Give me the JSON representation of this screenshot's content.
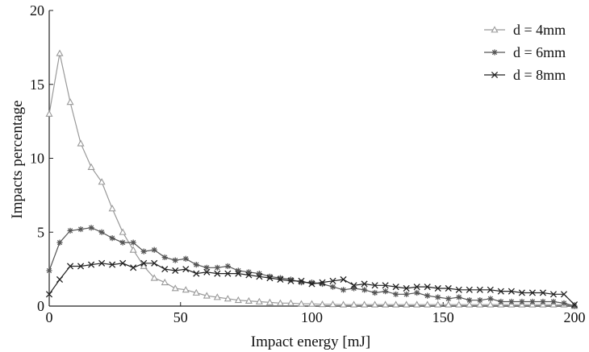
{
  "chart_data": {
    "type": "line",
    "xlabel": "Impact energy [mJ]",
    "ylabel": "Impacts percentage",
    "xlim": [
      0,
      200
    ],
    "ylim": [
      0,
      20
    ],
    "x_ticks": [
      0,
      50,
      100,
      150,
      200
    ],
    "y_ticks": [
      0,
      5,
      10,
      15,
      20
    ],
    "grid": false,
    "legend_position": "top-right",
    "x": [
      0,
      4,
      8,
      12,
      16,
      20,
      24,
      28,
      32,
      36,
      40,
      44,
      48,
      52,
      56,
      60,
      64,
      68,
      72,
      76,
      80,
      84,
      88,
      92,
      96,
      100,
      104,
      108,
      112,
      116,
      120,
      124,
      128,
      132,
      136,
      140,
      144,
      148,
      152,
      156,
      160,
      164,
      168,
      172,
      176,
      180,
      184,
      188,
      192,
      196,
      200
    ],
    "series": [
      {
        "name": "d = 4mm",
        "marker": "triangle",
        "color": "#999999",
        "values": [
          13.0,
          17.1,
          13.8,
          11.0,
          9.4,
          8.4,
          6.6,
          5.0,
          3.8,
          2.7,
          1.9,
          1.6,
          1.2,
          1.1,
          0.9,
          0.7,
          0.6,
          0.5,
          0.4,
          0.35,
          0.3,
          0.25,
          0.2,
          0.2,
          0.15,
          0.15,
          0.12,
          0.12,
          0.1,
          0.1,
          0.1,
          0.1,
          0.1,
          0.1,
          0.1,
          0.1,
          0.1,
          0.1,
          0.1,
          0.1,
          0.1,
          0.1,
          0.1,
          0.1,
          0.1,
          0.1,
          0.1,
          0.1,
          0.1,
          0.1,
          0.0
        ]
      },
      {
        "name": "d = 6mm",
        "marker": "asterisk",
        "color": "#555555",
        "values": [
          2.4,
          4.3,
          5.1,
          5.2,
          5.3,
          5.0,
          4.6,
          4.3,
          4.3,
          3.7,
          3.8,
          3.3,
          3.1,
          3.2,
          2.8,
          2.6,
          2.6,
          2.7,
          2.4,
          2.3,
          2.2,
          2.0,
          1.9,
          1.8,
          1.6,
          1.6,
          1.5,
          1.3,
          1.1,
          1.2,
          1.1,
          0.9,
          1.0,
          0.8,
          0.8,
          0.9,
          0.7,
          0.6,
          0.5,
          0.6,
          0.4,
          0.4,
          0.5,
          0.3,
          0.3,
          0.3,
          0.3,
          0.3,
          0.3,
          0.2,
          0.0
        ]
      },
      {
        "name": "d = 8mm",
        "marker": "cross",
        "color": "#222222",
        "values": [
          0.8,
          1.8,
          2.7,
          2.7,
          2.8,
          2.9,
          2.8,
          2.9,
          2.6,
          2.9,
          2.9,
          2.5,
          2.4,
          2.5,
          2.2,
          2.3,
          2.2,
          2.2,
          2.2,
          2.1,
          2.0,
          1.9,
          1.8,
          1.7,
          1.7,
          1.5,
          1.6,
          1.7,
          1.8,
          1.4,
          1.5,
          1.4,
          1.4,
          1.3,
          1.2,
          1.3,
          1.3,
          1.2,
          1.2,
          1.1,
          1.1,
          1.1,
          1.1,
          1.0,
          1.0,
          0.9,
          0.9,
          0.9,
          0.8,
          0.8,
          0.1
        ]
      }
    ]
  }
}
